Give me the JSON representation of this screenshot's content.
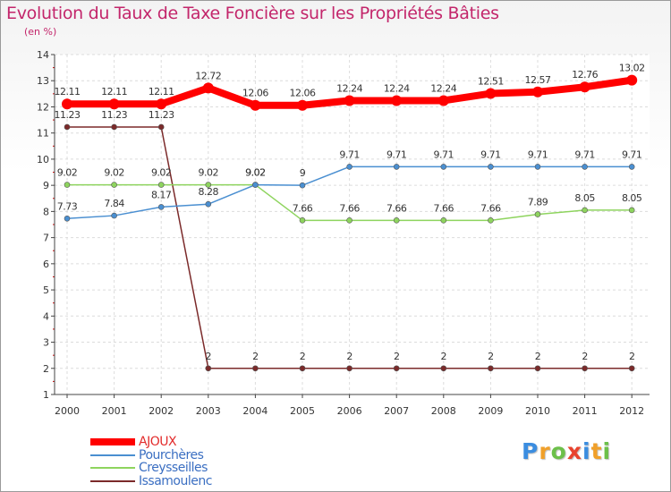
{
  "chart_data": {
    "type": "line",
    "title": "Evolution du Taux de Taxe Foncière sur les Propriétés Bâties",
    "ylabel": "(en %)",
    "xlabel": "",
    "x": [
      "2000",
      "2001",
      "2002",
      "2003",
      "2004",
      "2005",
      "2006",
      "2007",
      "2008",
      "2009",
      "2010",
      "2011",
      "2012"
    ],
    "ylim": [
      1,
      14
    ],
    "yticks": [
      "1",
      "2",
      "3",
      "4",
      "5",
      "6",
      "7",
      "8",
      "9",
      "10",
      "11",
      "12",
      "13",
      "14"
    ],
    "grid": true,
    "legend": "bottom-left",
    "series": [
      {
        "name": "AJOUX",
        "color": "#ff0000",
        "values": [
          12.11,
          12.11,
          12.11,
          12.72,
          12.06,
          12.06,
          12.24,
          12.24,
          12.24,
          12.51,
          12.57,
          12.76,
          13.02
        ],
        "labels": [
          "12.11",
          "12.11",
          "12.11",
          "12.72",
          "12.06",
          "12.06",
          "12.24",
          "12.24",
          "12.24",
          "12.51",
          "12.57",
          "12.76",
          "13.02"
        ]
      },
      {
        "name": "Pourchères",
        "color": "#4a8fd1",
        "values": [
          7.73,
          7.84,
          8.17,
          8.28,
          9.02,
          9,
          9.71,
          9.71,
          9.71,
          9.71,
          9.71,
          9.71,
          9.71
        ],
        "labels": [
          "7.73",
          "7.84",
          "8.17",
          "8.28",
          "9.02",
          "9",
          "9.71",
          "9.71",
          "9.71",
          "9.71",
          "9.71",
          "9.71",
          "9.71"
        ]
      },
      {
        "name": "Creysseilles",
        "color": "#8ed45e",
        "values": [
          9.02,
          9.02,
          9.02,
          9.02,
          9.02,
          7.66,
          7.66,
          7.66,
          7.66,
          7.66,
          7.89,
          8.05,
          8.05
        ],
        "labels": [
          "9.02",
          "9.02",
          "9.02",
          "9.02",
          "9.02",
          "7.66",
          "7.66",
          "7.66",
          "7.66",
          "7.66",
          "7.89",
          "8.05",
          "8.05"
        ]
      },
      {
        "name": "Issamoulenc",
        "color": "#7b2a2a",
        "values": [
          11.23,
          11.23,
          11.23,
          2,
          2,
          2,
          2,
          2,
          2,
          2,
          2,
          2,
          2
        ],
        "labels": [
          "11.23",
          "11.23",
          "11.23",
          "2",
          "2",
          "2",
          "2",
          "2",
          "2",
          "2",
          "2",
          "2",
          "2"
        ]
      }
    ]
  },
  "logo": {
    "letters": [
      "P",
      "r",
      "o",
      "x",
      "i",
      "t",
      "i"
    ],
    "colors": [
      "#3b8de0",
      "#f0a02a",
      "#6cc04a",
      "#e8432e",
      "#3b8de0",
      "#f0a02a",
      "#6cc04a"
    ]
  }
}
